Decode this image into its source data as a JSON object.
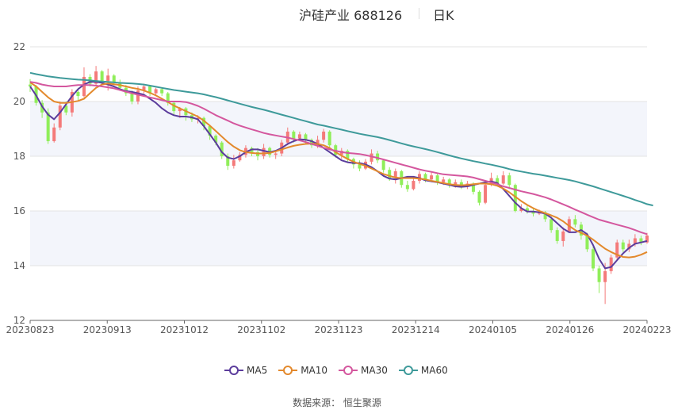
{
  "header": {
    "title": "沪硅产业 688126",
    "period": "日K"
  },
  "footer": {
    "source": "数据来源： 恒生聚源"
  },
  "chart_data": {
    "type": "candlestick",
    "ylim": [
      12,
      22
    ],
    "yticks": [
      12,
      14,
      16,
      18,
      20,
      22
    ],
    "xtick_labels": [
      "20230823",
      "20230913",
      "20231012",
      "20231102",
      "20231123",
      "20231214",
      "20240105",
      "20240126",
      "20240223"
    ],
    "up_color": "#f47a7a",
    "down_color": "#90ee5a",
    "legend_position": "bottom-center",
    "series": [
      {
        "name": "MA5",
        "color": "#5b3c9c",
        "values": [
          20.55,
          20.22,
          19.82,
          19.52,
          19.35,
          19.6,
          19.9,
          20.2,
          20.45,
          20.62,
          20.72,
          20.72,
          20.68,
          20.62,
          20.55,
          20.45,
          20.38,
          20.35,
          20.3,
          20.25,
          20.1,
          19.95,
          19.75,
          19.6,
          19.5,
          19.45,
          19.45,
          19.42,
          19.35,
          19.1,
          18.8,
          18.5,
          18.15,
          17.95,
          17.9,
          18.0,
          18.15,
          18.25,
          18.25,
          18.2,
          18.15,
          18.2,
          18.3,
          18.45,
          18.55,
          18.62,
          18.6,
          18.55,
          18.45,
          18.3,
          18.15,
          18.0,
          17.85,
          17.78,
          17.75,
          17.75,
          17.7,
          17.6,
          17.45,
          17.28,
          17.18,
          17.15,
          17.2,
          17.25,
          17.25,
          17.2,
          17.12,
          17.08,
          17.05,
          17.0,
          16.95,
          16.9,
          16.88,
          16.9,
          16.95,
          17.0,
          17.05,
          17.08,
          17.02,
          16.8,
          16.55,
          16.3,
          16.1,
          15.98,
          15.98,
          15.95,
          15.9,
          15.75,
          15.55,
          15.35,
          15.22,
          15.22,
          15.3,
          15.15,
          14.75,
          14.25,
          13.9,
          13.95,
          14.2,
          14.45,
          14.65,
          14.8,
          14.85,
          14.9
        ]
      },
      {
        "name": "MA10",
        "color": "#e3892c",
        "values": [
          20.7,
          20.55,
          20.35,
          20.15,
          20.0,
          19.95,
          19.95,
          19.98,
          20.02,
          20.1,
          20.3,
          20.5,
          20.62,
          20.66,
          20.63,
          20.6,
          20.55,
          20.5,
          20.46,
          20.4,
          20.32,
          20.22,
          20.1,
          19.98,
          19.85,
          19.75,
          19.65,
          19.55,
          19.45,
          19.3,
          19.12,
          18.92,
          18.72,
          18.52,
          18.35,
          18.22,
          18.15,
          18.12,
          18.1,
          18.1,
          18.12,
          18.18,
          18.25,
          18.32,
          18.38,
          18.42,
          18.45,
          18.46,
          18.45,
          18.4,
          18.3,
          18.15,
          18.02,
          17.9,
          17.8,
          17.72,
          17.65,
          17.55,
          17.45,
          17.35,
          17.28,
          17.22,
          17.2,
          17.2,
          17.2,
          17.18,
          17.15,
          17.1,
          17.06,
          17.02,
          16.98,
          16.95,
          16.94,
          16.95,
          16.98,
          17.0,
          17.0,
          16.98,
          16.92,
          16.82,
          16.68,
          16.52,
          16.36,
          16.22,
          16.1,
          16.0,
          15.92,
          15.84,
          15.75,
          15.62,
          15.45,
          15.3,
          15.2,
          15.1,
          14.95,
          14.78,
          14.62,
          14.5,
          14.4,
          14.32,
          14.3,
          14.33,
          14.4,
          14.5
        ]
      },
      {
        "name": "MA30",
        "color": "#d4579e",
        "values": [
          20.72,
          20.68,
          20.62,
          20.58,
          20.55,
          20.55,
          20.55,
          20.58,
          20.6,
          20.6,
          20.6,
          20.58,
          20.55,
          20.52,
          20.48,
          20.42,
          20.36,
          20.3,
          20.25,
          20.2,
          20.15,
          20.1,
          20.05,
          20.0,
          20.0,
          20.0,
          19.98,
          19.92,
          19.84,
          19.74,
          19.62,
          19.5,
          19.4,
          19.3,
          19.2,
          19.12,
          19.05,
          18.98,
          18.92,
          18.85,
          18.8,
          18.76,
          18.72,
          18.68,
          18.63,
          18.58,
          18.52,
          18.45,
          18.38,
          18.31,
          18.25,
          18.2,
          18.15,
          18.12,
          18.1,
          18.08,
          18.04,
          17.99,
          17.94,
          17.88,
          17.82,
          17.76,
          17.7,
          17.64,
          17.58,
          17.52,
          17.47,
          17.43,
          17.38,
          17.34,
          17.32,
          17.3,
          17.28,
          17.26,
          17.22,
          17.16,
          17.1,
          17.04,
          16.98,
          16.9,
          16.84,
          16.78,
          16.72,
          16.67,
          16.62,
          16.56,
          16.5,
          16.42,
          16.33,
          16.24,
          16.15,
          16.05,
          15.96,
          15.86,
          15.77,
          15.68,
          15.62,
          15.56,
          15.5,
          15.44,
          15.38,
          15.3,
          15.22,
          15.15
        ]
      },
      {
        "name": "MA60",
        "color": "#3e9a9a",
        "values": [
          21.05,
          21.0,
          20.96,
          20.92,
          20.89,
          20.86,
          20.84,
          20.82,
          20.8,
          20.79,
          20.77,
          20.75,
          20.73,
          20.72,
          20.7,
          20.68,
          20.67,
          20.66,
          20.64,
          20.62,
          20.58,
          20.54,
          20.5,
          20.46,
          20.42,
          20.39,
          20.36,
          20.33,
          20.3,
          20.26,
          20.21,
          20.16,
          20.1,
          20.04,
          19.98,
          19.92,
          19.86,
          19.8,
          19.75,
          19.7,
          19.64,
          19.58,
          19.52,
          19.46,
          19.4,
          19.34,
          19.28,
          19.22,
          19.16,
          19.12,
          19.07,
          19.02,
          18.97,
          18.92,
          18.87,
          18.82,
          18.78,
          18.74,
          18.7,
          18.65,
          18.59,
          18.53,
          18.47,
          18.41,
          18.36,
          18.31,
          18.26,
          18.21,
          18.15,
          18.09,
          18.03,
          17.97,
          17.92,
          17.87,
          17.82,
          17.78,
          17.73,
          17.69,
          17.64,
          17.59,
          17.53,
          17.48,
          17.44,
          17.4,
          17.36,
          17.33,
          17.29,
          17.25,
          17.21,
          17.17,
          17.13,
          17.08,
          17.02,
          16.96,
          16.9,
          16.83,
          16.76,
          16.69,
          16.62,
          16.55,
          16.48,
          16.4,
          16.33,
          16.25,
          16.2
        ]
      }
    ],
    "candles": [
      [
        20.62,
        20.55,
        20.82,
        20.35
      ],
      [
        20.55,
        19.95,
        20.6,
        19.85
      ],
      [
        19.95,
        19.6,
        20.05,
        19.4
      ],
      [
        19.6,
        18.55,
        19.75,
        18.45
      ],
      [
        18.55,
        19.05,
        19.2,
        18.5
      ],
      [
        19.05,
        19.85,
        20.0,
        18.95
      ],
      [
        19.85,
        19.6,
        20.0,
        19.5
      ],
      [
        19.6,
        20.35,
        20.45,
        19.45
      ],
      [
        20.35,
        20.2,
        20.5,
        20.05
      ],
      [
        20.2,
        20.9,
        21.25,
        20.15
      ],
      [
        20.9,
        20.65,
        21.0,
        20.55
      ],
      [
        20.65,
        21.1,
        21.3,
        20.55
      ],
      [
        21.1,
        20.75,
        21.15,
        20.6
      ],
      [
        20.75,
        20.95,
        21.2,
        20.4
      ],
      [
        20.95,
        20.7,
        21.0,
        20.6
      ],
      [
        20.7,
        20.5,
        20.8,
        20.4
      ],
      [
        20.5,
        20.3,
        20.6,
        20.2
      ],
      [
        20.3,
        20.0,
        20.4,
        19.9
      ],
      [
        20.0,
        20.4,
        20.55,
        19.9
      ],
      [
        20.4,
        20.55,
        20.65,
        20.3
      ],
      [
        20.55,
        20.3,
        20.6,
        20.2
      ],
      [
        20.3,
        20.45,
        20.5,
        20.2
      ],
      [
        20.45,
        20.3,
        20.5,
        20.2
      ],
      [
        20.3,
        19.95,
        20.35,
        19.85
      ],
      [
        19.95,
        19.65,
        20.0,
        19.5
      ],
      [
        19.65,
        19.75,
        19.8,
        19.4
      ],
      [
        19.75,
        19.5,
        19.8,
        19.3
      ],
      [
        19.5,
        19.35,
        19.6,
        19.25
      ],
      [
        19.35,
        19.4,
        19.5,
        19.2
      ],
      [
        19.4,
        19.1,
        19.45,
        18.95
      ],
      [
        19.1,
        18.75,
        19.15,
        18.6
      ],
      [
        18.75,
        18.5,
        18.8,
        18.4
      ],
      [
        18.5,
        18.0,
        18.55,
        17.9
      ],
      [
        18.0,
        17.65,
        18.1,
        17.5
      ],
      [
        17.65,
        17.85,
        18.05,
        17.55
      ],
      [
        17.85,
        18.05,
        18.15,
        17.8
      ],
      [
        18.05,
        18.3,
        18.4,
        17.95
      ],
      [
        18.3,
        18.15,
        18.35,
        18.0
      ],
      [
        18.15,
        18.0,
        18.3,
        17.85
      ],
      [
        18.0,
        18.3,
        18.45,
        17.9
      ],
      [
        18.3,
        18.05,
        18.35,
        17.95
      ],
      [
        18.05,
        18.1,
        18.2,
        17.9
      ],
      [
        18.1,
        18.5,
        18.6,
        18.0
      ],
      [
        18.5,
        18.9,
        19.05,
        18.4
      ],
      [
        18.9,
        18.65,
        18.95,
        18.5
      ],
      [
        18.65,
        18.8,
        18.9,
        18.55
      ],
      [
        18.8,
        18.6,
        18.85,
        18.45
      ],
      [
        18.6,
        18.4,
        18.65,
        18.3
      ],
      [
        18.4,
        18.6,
        18.75,
        18.3
      ],
      [
        18.6,
        18.9,
        19.0,
        18.5
      ],
      [
        18.9,
        18.4,
        18.95,
        18.3
      ],
      [
        18.4,
        18.05,
        18.45,
        17.95
      ],
      [
        18.05,
        18.2,
        18.3,
        17.9
      ],
      [
        18.2,
        17.9,
        18.25,
        17.8
      ],
      [
        17.9,
        17.7,
        17.95,
        17.55
      ],
      [
        17.7,
        17.55,
        17.85,
        17.45
      ],
      [
        17.55,
        17.8,
        17.9,
        17.5
      ],
      [
        17.8,
        18.1,
        18.25,
        17.7
      ],
      [
        18.1,
        17.85,
        18.2,
        17.75
      ],
      [
        17.85,
        17.5,
        17.9,
        17.4
      ],
      [
        17.5,
        17.2,
        17.6,
        17.1
      ],
      [
        17.2,
        17.45,
        17.55,
        17.0
      ],
      [
        17.45,
        16.95,
        17.5,
        16.85
      ],
      [
        16.95,
        16.8,
        17.1,
        16.7
      ],
      [
        16.8,
        17.1,
        17.25,
        16.75
      ],
      [
        17.1,
        17.35,
        17.45,
        17.0
      ],
      [
        17.35,
        17.15,
        17.4,
        17.05
      ],
      [
        17.15,
        17.3,
        17.45,
        17.1
      ],
      [
        17.3,
        17.05,
        17.35,
        16.95
      ],
      [
        17.05,
        17.15,
        17.25,
        16.95
      ],
      [
        17.15,
        16.95,
        17.2,
        16.85
      ],
      [
        16.95,
        17.05,
        17.15,
        16.85
      ],
      [
        17.05,
        16.9,
        17.15,
        16.8
      ],
      [
        16.9,
        17.0,
        17.1,
        16.8
      ],
      [
        17.0,
        16.7,
        17.05,
        16.6
      ],
      [
        16.7,
        16.3,
        16.75,
        16.2
      ],
      [
        16.3,
        16.95,
        17.05,
        16.25
      ],
      [
        16.95,
        17.2,
        17.4,
        16.9
      ],
      [
        17.2,
        17.0,
        17.3,
        16.9
      ],
      [
        17.0,
        17.3,
        17.45,
        16.95
      ],
      [
        17.3,
        16.95,
        17.4,
        16.8
      ],
      [
        16.95,
        16.0,
        17.0,
        15.95
      ],
      [
        16.0,
        16.1,
        16.25,
        15.95
      ],
      [
        16.1,
        16.0,
        16.2,
        15.9
      ],
      [
        16.0,
        15.9,
        16.1,
        15.8
      ],
      [
        15.9,
        15.95,
        16.05,
        15.85
      ],
      [
        15.95,
        15.7,
        16.0,
        15.6
      ],
      [
        15.7,
        15.3,
        15.8,
        15.2
      ],
      [
        15.3,
        14.9,
        15.4,
        14.8
      ],
      [
        14.9,
        15.25,
        15.4,
        14.7
      ],
      [
        15.25,
        15.7,
        15.8,
        15.2
      ],
      [
        15.7,
        15.5,
        15.85,
        15.4
      ],
      [
        15.5,
        15.1,
        15.6,
        14.95
      ],
      [
        15.1,
        14.6,
        15.2,
        14.5
      ],
      [
        14.6,
        13.9,
        14.7,
        13.8
      ],
      [
        13.9,
        13.4,
        14.0,
        13.0
      ],
      [
        13.4,
        13.8,
        14.1,
        12.6
      ],
      [
        13.8,
        14.3,
        14.4,
        13.7
      ],
      [
        14.3,
        14.85,
        14.95,
        14.2
      ],
      [
        14.85,
        14.6,
        14.95,
        14.5
      ],
      [
        14.6,
        14.8,
        14.95,
        14.5
      ],
      [
        14.8,
        15.0,
        15.15,
        14.7
      ],
      [
        15.0,
        14.85,
        15.1,
        14.75
      ],
      [
        14.85,
        15.1,
        15.2,
        14.8
      ]
    ]
  }
}
